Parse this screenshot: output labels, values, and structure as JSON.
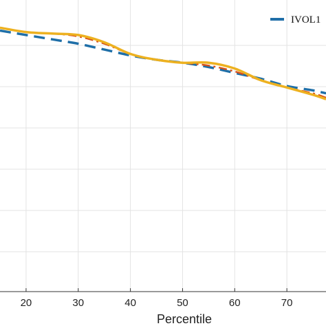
{
  "chart_data": {
    "type": "line",
    "xlabel": "Percentile",
    "x_ticks": [
      20,
      30,
      40,
      50,
      60,
      70
    ],
    "xlim": [
      15,
      77.5
    ],
    "ylim": [
      0,
      1
    ],
    "grid": true,
    "legend_position": "top-right",
    "legend_entries": [
      "IVOL1"
    ],
    "series": [
      {
        "name": "IVOL1",
        "style": "dashed",
        "color": "#1f6fa8",
        "x": [
          15,
          20,
          25,
          30,
          35,
          40,
          45,
          50,
          55,
          60,
          65,
          70,
          75,
          77.5
        ],
        "y": [
          0.895,
          0.88,
          0.865,
          0.85,
          0.83,
          0.81,
          0.795,
          0.785,
          0.77,
          0.75,
          0.73,
          0.705,
          0.69,
          0.68
        ]
      },
      {
        "name": "",
        "style": "dashdot",
        "color": "#d95319",
        "x": [
          15,
          20,
          25,
          30,
          35,
          40,
          45,
          50,
          55,
          60,
          65,
          70,
          75,
          77.5
        ],
        "y": [
          0.905,
          0.89,
          0.885,
          0.875,
          0.85,
          0.815,
          0.795,
          0.785,
          0.775,
          0.755,
          0.725,
          0.7,
          0.68,
          0.665
        ]
      },
      {
        "name": "",
        "style": "solid",
        "color": "#edb120",
        "x": [
          15,
          20,
          25,
          30,
          35,
          40,
          45,
          50,
          55,
          60,
          65,
          70,
          75,
          77.5
        ],
        "y": [
          0.905,
          0.89,
          0.885,
          0.88,
          0.855,
          0.815,
          0.795,
          0.785,
          0.785,
          0.765,
          0.725,
          0.7,
          0.675,
          0.66
        ]
      }
    ]
  }
}
